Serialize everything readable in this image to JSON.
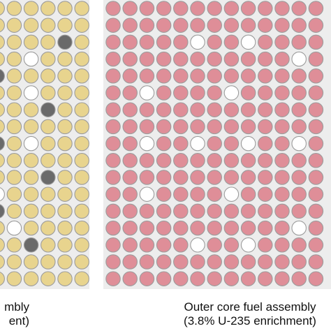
{
  "colors": {
    "panel_bg": "#ededed",
    "inner_fuel": "#e8d48e",
    "outer_fuel": "#df8e98",
    "rod_stroke": "#9c9c9c",
    "water_hole": "#ffffff",
    "dark_rod": "#6a6a6a"
  },
  "assemblies": [
    {
      "id": "inner",
      "fuel_color": "#e8d48e",
      "caption_line1": "mbly",
      "caption_line2": "ent)",
      "rows": 17,
      "visible_cols": 6,
      "special_rods": [
        {
          "row": 2,
          "col": 4,
          "kind": "dark"
        },
        {
          "row": 3,
          "col": 2,
          "kind": "white"
        },
        {
          "row": 4,
          "col": 0,
          "kind": "dark"
        },
        {
          "row": 5,
          "col": 2,
          "kind": "white"
        },
        {
          "row": 6,
          "col": 3,
          "kind": "dark"
        },
        {
          "row": 8,
          "col": 0,
          "kind": "dark"
        },
        {
          "row": 8,
          "col": 2,
          "kind": "white"
        },
        {
          "row": 10,
          "col": 3,
          "kind": "dark"
        },
        {
          "row": 11,
          "col": 0,
          "kind": "white"
        },
        {
          "row": 12,
          "col": 0,
          "kind": "dark"
        },
        {
          "row": 13,
          "col": 1,
          "kind": "white"
        },
        {
          "row": 14,
          "col": 2,
          "kind": "dark"
        }
      ]
    },
    {
      "id": "outer",
      "fuel_color": "#df8e98",
      "caption_line1": "Outer core fuel assembly",
      "caption_line2": "(3.8% U-235 enrichment)",
      "rows": 17,
      "visible_cols": 13,
      "special_rods": [
        {
          "row": 2,
          "col": 5,
          "kind": "white"
        },
        {
          "row": 2,
          "col": 8,
          "kind": "white"
        },
        {
          "row": 3,
          "col": 11,
          "kind": "white"
        },
        {
          "row": 5,
          "col": 2,
          "kind": "white"
        },
        {
          "row": 5,
          "col": 7,
          "kind": "white"
        },
        {
          "row": 8,
          "col": 2,
          "kind": "white"
        },
        {
          "row": 8,
          "col": 5,
          "kind": "white"
        },
        {
          "row": 8,
          "col": 8,
          "kind": "white"
        },
        {
          "row": 8,
          "col": 11,
          "kind": "white"
        },
        {
          "row": 11,
          "col": 2,
          "kind": "white"
        },
        {
          "row": 11,
          "col": 7,
          "kind": "white"
        },
        {
          "row": 13,
          "col": 11,
          "kind": "white"
        },
        {
          "row": 14,
          "col": 5,
          "kind": "white"
        },
        {
          "row": 14,
          "col": 8,
          "kind": "white"
        }
      ]
    }
  ]
}
